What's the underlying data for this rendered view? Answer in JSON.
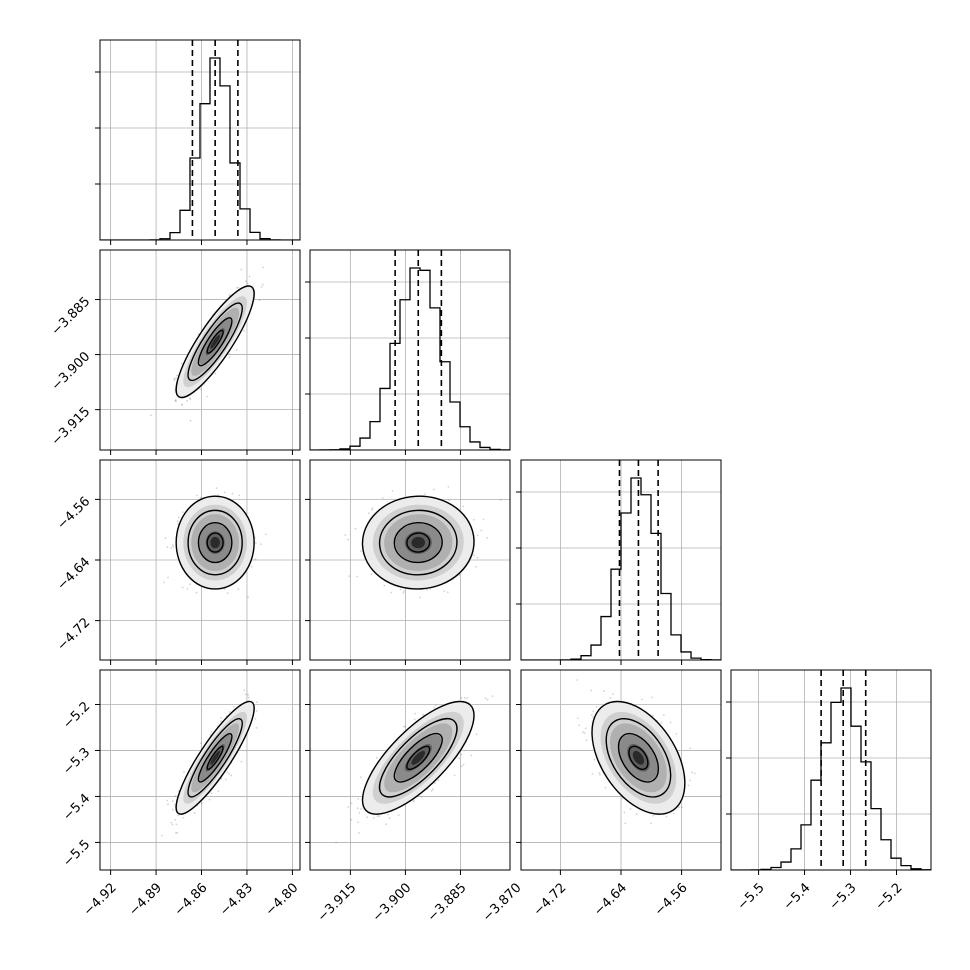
{
  "chart_data": {
    "type": "corner",
    "parameters": [
      {
        "median": -4.851,
        "lower": -4.866,
        "upper": -4.836,
        "sigma": 0.0105,
        "range": [
          -4.927,
          -4.795
        ],
        "ticks": [
          "-4.92",
          "-4.89",
          "-4.86",
          "-4.83",
          "-4.80"
        ]
      },
      {
        "median": -3.8965,
        "lower": -3.9028,
        "upper": -3.8902,
        "sigma": 0.0062,
        "range": [
          -3.926,
          -3.8715
        ],
        "ticks": [
          "-3.915",
          "-3.900",
          "-3.885",
          "-3.870"
        ]
      },
      {
        "median": -4.617,
        "lower": -4.642,
        "upper": -4.591,
        "sigma": 0.025,
        "range": [
          -4.772,
          -4.508
        ],
        "ticks": [
          "-4.72",
          "-4.64",
          "-4.56"
        ]
      },
      {
        "median": -5.316,
        "lower": -5.364,
        "upper": -5.267,
        "sigma": 0.05,
        "range": [
          -5.56,
          -5.125
        ],
        "ticks": [
          "-5.5",
          "-5.4",
          "-5.3",
          "-5.2"
        ]
      }
    ],
    "correlations": [
      {
        "pair": [
          0,
          1
        ],
        "rho": 0.86
      },
      {
        "pair": [
          0,
          2
        ],
        "rho": 0.0
      },
      {
        "pair": [
          1,
          2
        ],
        "rho": 0.02
      },
      {
        "pair": [
          0,
          3
        ],
        "rho": 0.88
      },
      {
        "pair": [
          1,
          3
        ],
        "rho": 0.75
      },
      {
        "pair": [
          2,
          3
        ],
        "rho": -0.45
      }
    ],
    "quantile_lines": "dashed",
    "grid": true,
    "marker_color": "#808080",
    "line_color": "#000000"
  }
}
